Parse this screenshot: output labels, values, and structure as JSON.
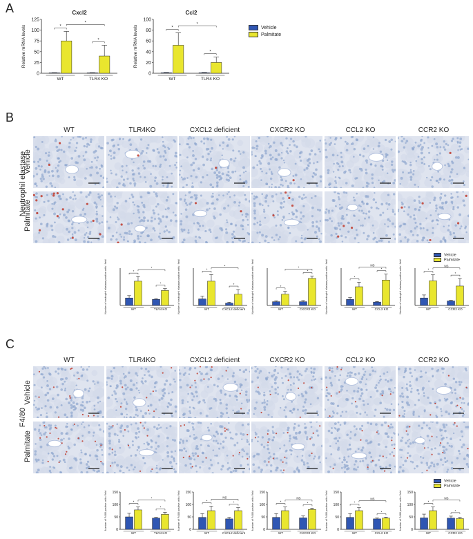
{
  "colors": {
    "vehicle": "#2f56b3",
    "palmitate": "#e9e62e",
    "nuclei": "#8fa6cf",
    "stain": "#c0392b",
    "tile_bg": "#dfe4ef"
  },
  "panels": {
    "A": {
      "letter": "A"
    },
    "B": {
      "letter": "B",
      "stain_label": "Neutrophil elastase"
    },
    "C": {
      "letter": "C",
      "stain_label": "F4/80"
    }
  },
  "legend": {
    "vehicle": "Vehicle",
    "palmitate": "Palmitate"
  },
  "columns": [
    "WT",
    "TLR4KO",
    "CXCL2 deficient",
    "CXCR2 KO",
    "CCL2 KO",
    "CCR2 KO"
  ],
  "rows": [
    "Vehicle",
    "Palmitate"
  ],
  "tile_density": {
    "B": {
      "Vehicle": [
        0.05,
        0.02,
        0.02,
        0.02,
        0.01,
        0.02
      ],
      "Palmitate": [
        0.35,
        0.05,
        0.05,
        0.1,
        0.08,
        0.12
      ]
    },
    "C": {
      "Vehicle": [
        0.3,
        0.2,
        0.25,
        0.2,
        0.25,
        0.2
      ],
      "Palmitate": [
        0.45,
        0.25,
        0.35,
        0.35,
        0.3,
        0.3
      ]
    }
  },
  "chart_data": [
    {
      "id": "A1",
      "type": "bar",
      "title": "Cxcl2",
      "ylabel": "Relative mRNA levels",
      "ylim": [
        0,
        125
      ],
      "yticks": [
        0,
        25,
        50,
        75,
        100,
        125
      ],
      "categories": [
        "WT",
        "TLR4 KO"
      ],
      "series": [
        {
          "name": "Vehicle",
          "values": [
            1,
            1
          ],
          "errors": [
            0.5,
            0.5
          ]
        },
        {
          "name": "Palmitate",
          "values": [
            75,
            40
          ],
          "errors": [
            22,
            25
          ]
        }
      ],
      "annotations": [
        "*",
        "*",
        "*"
      ]
    },
    {
      "id": "A2",
      "type": "bar",
      "title": "Ccl2",
      "ylabel": "Relative mRNA levels",
      "ylim": [
        0,
        100
      ],
      "yticks": [
        0,
        20,
        40,
        60,
        80,
        100
      ],
      "categories": [
        "WT",
        "TLR4 KO"
      ],
      "series": [
        {
          "name": "Vehicle",
          "values": [
            1,
            1
          ],
          "errors": [
            0.5,
            0.5
          ]
        },
        {
          "name": "Palmitate",
          "values": [
            52,
            20
          ],
          "errors": [
            23,
            10
          ]
        }
      ],
      "annotations": [
        "*",
        "*",
        "*"
      ]
    },
    {
      "id": "B1",
      "type": "bar",
      "ylabel": "Number of neutrophil elastase positive cells / field",
      "ylim": [
        0,
        40
      ],
      "categories": [
        "WT",
        "TLR4 KO"
      ],
      "series": [
        {
          "name": "Vehicle",
          "values": [
            8,
            6.5
          ],
          "errors": [
            2.5,
            0.8
          ]
        },
        {
          "name": "Palmitate",
          "values": [
            26,
            16
          ],
          "errors": [
            5,
            2
          ]
        }
      ],
      "annotations": [
        "*",
        "*",
        "*"
      ]
    },
    {
      "id": "B2",
      "type": "bar",
      "ylabel": "Number of neutrophil elastase positive cells / field",
      "ylim": [
        0,
        40
      ],
      "categories": [
        "WT",
        "CXCL2 deficient"
      ],
      "series": [
        {
          "name": "Vehicle",
          "values": [
            7,
            2.5
          ],
          "errors": [
            3,
            1
          ]
        },
        {
          "name": "Palmitate",
          "values": [
            26,
            12
          ],
          "errors": [
            7,
            5
          ]
        }
      ],
      "annotations": [
        "*",
        "*",
        "*"
      ]
    },
    {
      "id": "B3",
      "type": "bar",
      "ylabel": "Number of neutrophil elastase positive cells / field",
      "ylim": [
        0,
        80
      ],
      "categories": [
        "WT",
        "CXCR2 KO"
      ],
      "series": [
        {
          "name": "Vehicle",
          "values": [
            8,
            8
          ],
          "errors": [
            2,
            2.5
          ]
        },
        {
          "name": "Palmitate",
          "values": [
            24,
            58
          ],
          "errors": [
            6,
            5
          ]
        }
      ],
      "annotations": [
        "*",
        "*",
        "*"
      ]
    },
    {
      "id": "B4",
      "type": "bar",
      "ylabel": "Number of neutrophil elastase positive cells / field",
      "ylim": [
        0,
        50
      ],
      "categories": [
        "WT",
        "CCL2 KO"
      ],
      "series": [
        {
          "name": "Vehicle",
          "values": [
            8,
            4.5
          ],
          "errors": [
            2.5,
            0.8
          ]
        },
        {
          "name": "Palmitate",
          "values": [
            25,
            34
          ],
          "errors": [
            6,
            8
          ]
        }
      ],
      "annotations": [
        "*",
        "NS",
        "*"
      ]
    },
    {
      "id": "B5",
      "type": "bar",
      "ylabel": "Number of neutrophil elastase positive cells / field",
      "ylim": [
        0,
        50
      ],
      "categories": [
        "WT",
        "CCR2 KO"
      ],
      "series": [
        {
          "name": "Vehicle",
          "values": [
            10,
            6
          ],
          "errors": [
            4,
            0.8
          ]
        },
        {
          "name": "Palmitate",
          "values": [
            33,
            26
          ],
          "errors": [
            8,
            10
          ]
        }
      ],
      "annotations": [
        "*",
        "NS",
        "*"
      ]
    },
    {
      "id": "C1",
      "type": "bar",
      "ylabel": "Number of F4/80 positive cells / field",
      "ylim": [
        0,
        150
      ],
      "yticks": [
        0,
        50,
        100,
        150
      ],
      "categories": [
        "WT",
        "TLR4 KO"
      ],
      "series": [
        {
          "name": "Vehicle",
          "values": [
            50,
            45
          ],
          "errors": [
            15,
            3
          ]
        },
        {
          "name": "Palmitate",
          "values": [
            78,
            60
          ],
          "errors": [
            12,
            8
          ]
        }
      ],
      "annotations": [
        "*",
        "*",
        "*"
      ]
    },
    {
      "id": "C2",
      "type": "bar",
      "ylabel": "Number of F4/80 positive cells / field",
      "ylim": [
        0,
        150
      ],
      "yticks": [
        0,
        50,
        100,
        150
      ],
      "categories": [
        "WT",
        "CXCL2 deficient"
      ],
      "series": [
        {
          "name": "Vehicle",
          "values": [
            48,
            42
          ],
          "errors": [
            15,
            6
          ]
        },
        {
          "name": "Palmitate",
          "values": [
            75,
            75
          ],
          "errors": [
            18,
            12
          ]
        }
      ],
      "annotations": [
        "*",
        "NS",
        "*"
      ]
    },
    {
      "id": "C3",
      "type": "bar",
      "ylabel": "Number of F4/80 positive cells / field",
      "ylim": [
        0,
        150
      ],
      "yticks": [
        0,
        50,
        100,
        150
      ],
      "categories": [
        "WT",
        "CXCR2 KO"
      ],
      "series": [
        {
          "name": "Vehicle",
          "values": [
            48,
            46
          ],
          "errors": [
            15,
            8
          ]
        },
        {
          "name": "Palmitate",
          "values": [
            75,
            80
          ],
          "errors": [
            15,
            5
          ]
        }
      ],
      "annotations": [
        "*",
        "NS",
        "*"
      ]
    },
    {
      "id": "C4",
      "type": "bar",
      "ylabel": "Number of F4/80 positive cells / field",
      "ylim": [
        0,
        150
      ],
      "yticks": [
        0,
        50,
        100,
        150
      ],
      "categories": [
        "WT",
        "CCL2 KO"
      ],
      "series": [
        {
          "name": "Vehicle",
          "values": [
            48,
            42
          ],
          "errors": [
            15,
            4
          ]
        },
        {
          "name": "Palmitate",
          "values": [
            75,
            45
          ],
          "errors": [
            12,
            4
          ]
        }
      ],
      "annotations": [
        "*",
        "NS",
        "*"
      ]
    },
    {
      "id": "C5",
      "type": "bar",
      "ylabel": "Number of F4/80 positive cells / field",
      "ylim": [
        0,
        150
      ],
      "yticks": [
        0,
        50,
        100,
        150
      ],
      "categories": [
        "WT",
        "CCR2 KO"
      ],
      "series": [
        {
          "name": "Vehicle",
          "values": [
            46,
            45
          ],
          "errors": [
            15,
            8
          ]
        },
        {
          "name": "Palmitate",
          "values": [
            75,
            43
          ],
          "errors": [
            15,
            5
          ]
        }
      ],
      "annotations": [
        "*",
        "NS",
        "*"
      ]
    }
  ]
}
